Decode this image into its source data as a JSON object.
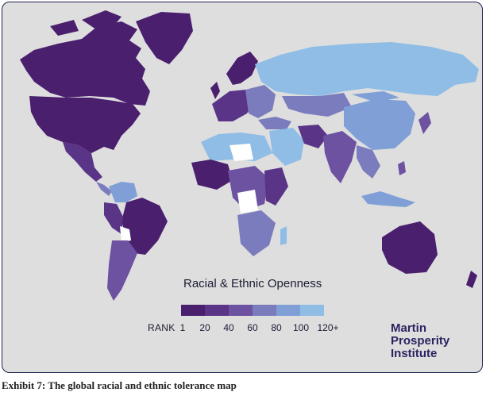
{
  "map": {
    "legend_title": "Racial & Ethnic Openness",
    "rank_label": "RANK",
    "ticks": [
      "1",
      "20",
      "40",
      "60",
      "80",
      "100",
      "120+"
    ],
    "colors": [
      "#4a1f6e",
      "#5a3487",
      "#6c52a0",
      "#7b7cbd",
      "#7f9fd6",
      "#8fbde6"
    ],
    "ocean_color": "#dedede",
    "no_data_color": "#ffffff"
  },
  "branding": {
    "org_lines": [
      "Martin",
      "Prosperity",
      "Institute"
    ]
  },
  "caption": "Exhibit 7: The global racial and ethnic tolerance map"
}
